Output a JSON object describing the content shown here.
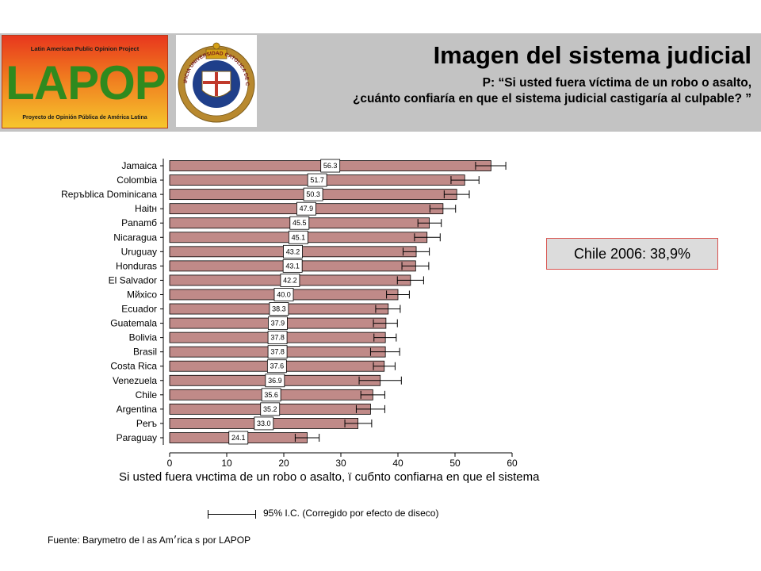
{
  "header": {
    "title": "Imagen del sistema judicial",
    "question_line1": "P: “Si usted fuera víctima de un robo o asalto,",
    "question_line2": "¿cuánto confiaría en que el sistema judicial castigaría al culpable? ”",
    "lapop_top": "Latin American Public Opinion Project",
    "lapop_word": "LAPOP",
    "lapop_bottom": "Proyecto de Opinión Pública de América Latina",
    "uc_seal_text": "PONTIFICIA UNIVERSIDAD CATOLICA DE CHILE",
    "colors": {
      "header_bg": "#c3c3c3",
      "bar": "#c08a88",
      "lapop_green": "#2f8a1e"
    }
  },
  "callout": {
    "text": "Chile 2006: 38,9%"
  },
  "legend": {
    "text": "95% I.C. (Corregido por efecto de diseco)"
  },
  "source": "Fuente: Barymetro de l as Am׳rica s por LAPOP",
  "chart_data": {
    "type": "bar",
    "orientation": "horizontal",
    "xlabel": "Si usted fuera vнctima de un robo o asalto, ї cuбnto confiarнa en que el sistema",
    "xlim": [
      0,
      60
    ],
    "xticks": [
      0,
      10,
      20,
      30,
      40,
      50,
      60
    ],
    "categories": [
      "Jamaica",
      "Colombia",
      "Repъblica Dominicana",
      "Haitн",
      "Panamб",
      "Nicaragua",
      "Uruguay",
      "Honduras",
      "El Salvador",
      "Mйxico",
      "Ecuador",
      "Guatemala",
      "Bolivia",
      "Brasil",
      "Costa Rica",
      "Venezuela",
      "Chile",
      "Argentina",
      "Perъ",
      "Paraguay"
    ],
    "values": [
      56.3,
      51.7,
      50.3,
      47.9,
      45.5,
      45.1,
      43.2,
      43.1,
      42.2,
      40.0,
      38.3,
      37.9,
      37.8,
      37.8,
      37.6,
      36.9,
      35.6,
      35.2,
      33.0,
      24.1
    ],
    "value_labels": [
      "56.3",
      "51.7",
      "50.3",
      "47.9",
      "45.5",
      "45.1",
      "43.2",
      "43.1",
      "42.2",
      "40.0",
      "38.3",
      "37.9",
      "37.8",
      "37.8",
      "37.6",
      "36.9",
      "35.6",
      "35.2",
      "33.0",
      "24.1"
    ],
    "ci_low": [
      53.6,
      49.3,
      48.1,
      45.6,
      43.5,
      42.9,
      40.9,
      40.7,
      39.9,
      38.0,
      36.1,
      35.7,
      35.8,
      35.2,
      35.7,
      33.2,
      33.5,
      32.7,
      30.7,
      22.0
    ],
    "ci_high": [
      58.9,
      54.2,
      52.5,
      50.1,
      47.6,
      47.4,
      45.5,
      45.4,
      44.5,
      42.0,
      40.4,
      39.9,
      39.7,
      40.3,
      39.5,
      40.6,
      37.7,
      37.7,
      35.4,
      26.2
    ]
  }
}
